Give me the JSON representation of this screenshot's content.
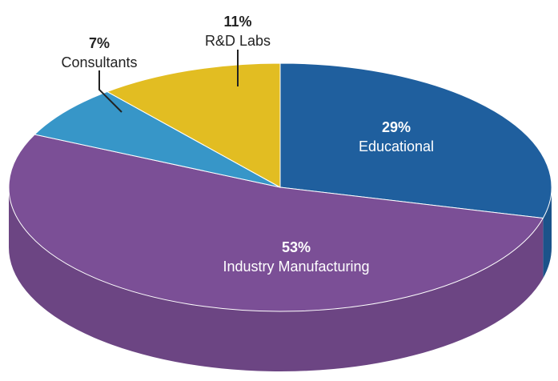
{
  "chart_data": {
    "type": "pie",
    "categories": [
      "Educational",
      "Industry Manufacturing",
      "Consultants",
      "R&D Labs"
    ],
    "values": [
      29,
      53,
      7,
      11
    ],
    "value_labels": [
      "29%",
      "53%",
      "7%",
      "11%"
    ],
    "colors": [
      "#1f5f9e",
      "#7b4f96",
      "#3796c8",
      "#e2bd22"
    ]
  }
}
